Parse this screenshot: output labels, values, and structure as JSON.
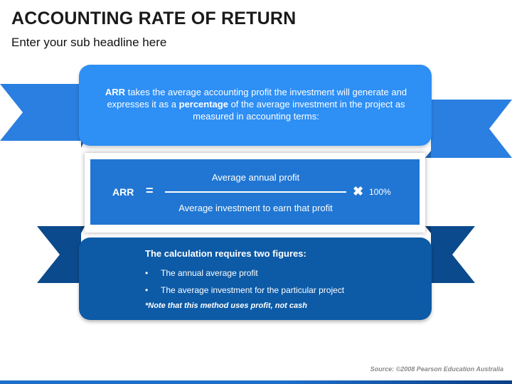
{
  "header": {
    "title": "ACCOUNTING RATE OF RETURN",
    "subtitle": "Enter your sub headline here"
  },
  "definition": {
    "arr": "ARR",
    "part1": " takes the average accounting profit the investment will generate and expresses it as a ",
    "emphasis": "percentage",
    "part2": " of the average investment in the project as measured in accounting terms:"
  },
  "formula": {
    "label": "ARR",
    "equals": "=",
    "numerator": "Average annual profit",
    "denominator": "Average investment to earn that profit",
    "times": "✖",
    "multiplier": "100%"
  },
  "calculation": {
    "heading": "The calculation requires two figures:",
    "items": [
      "The annual average profit",
      "The average investment for the particular project"
    ],
    "bullet": "•",
    "note": "*Note that this method uses profit, not cash"
  },
  "footer": {
    "source": "Source: ©2008 Pearson Education Australia"
  },
  "colors": {
    "top_box": "#2e8ff5",
    "top_ribbon": "#2a7fe0",
    "formula_box": "#2076d2",
    "bottom_box": "#0d5aa6",
    "bottom_ribbon": "#0b4a8c"
  }
}
